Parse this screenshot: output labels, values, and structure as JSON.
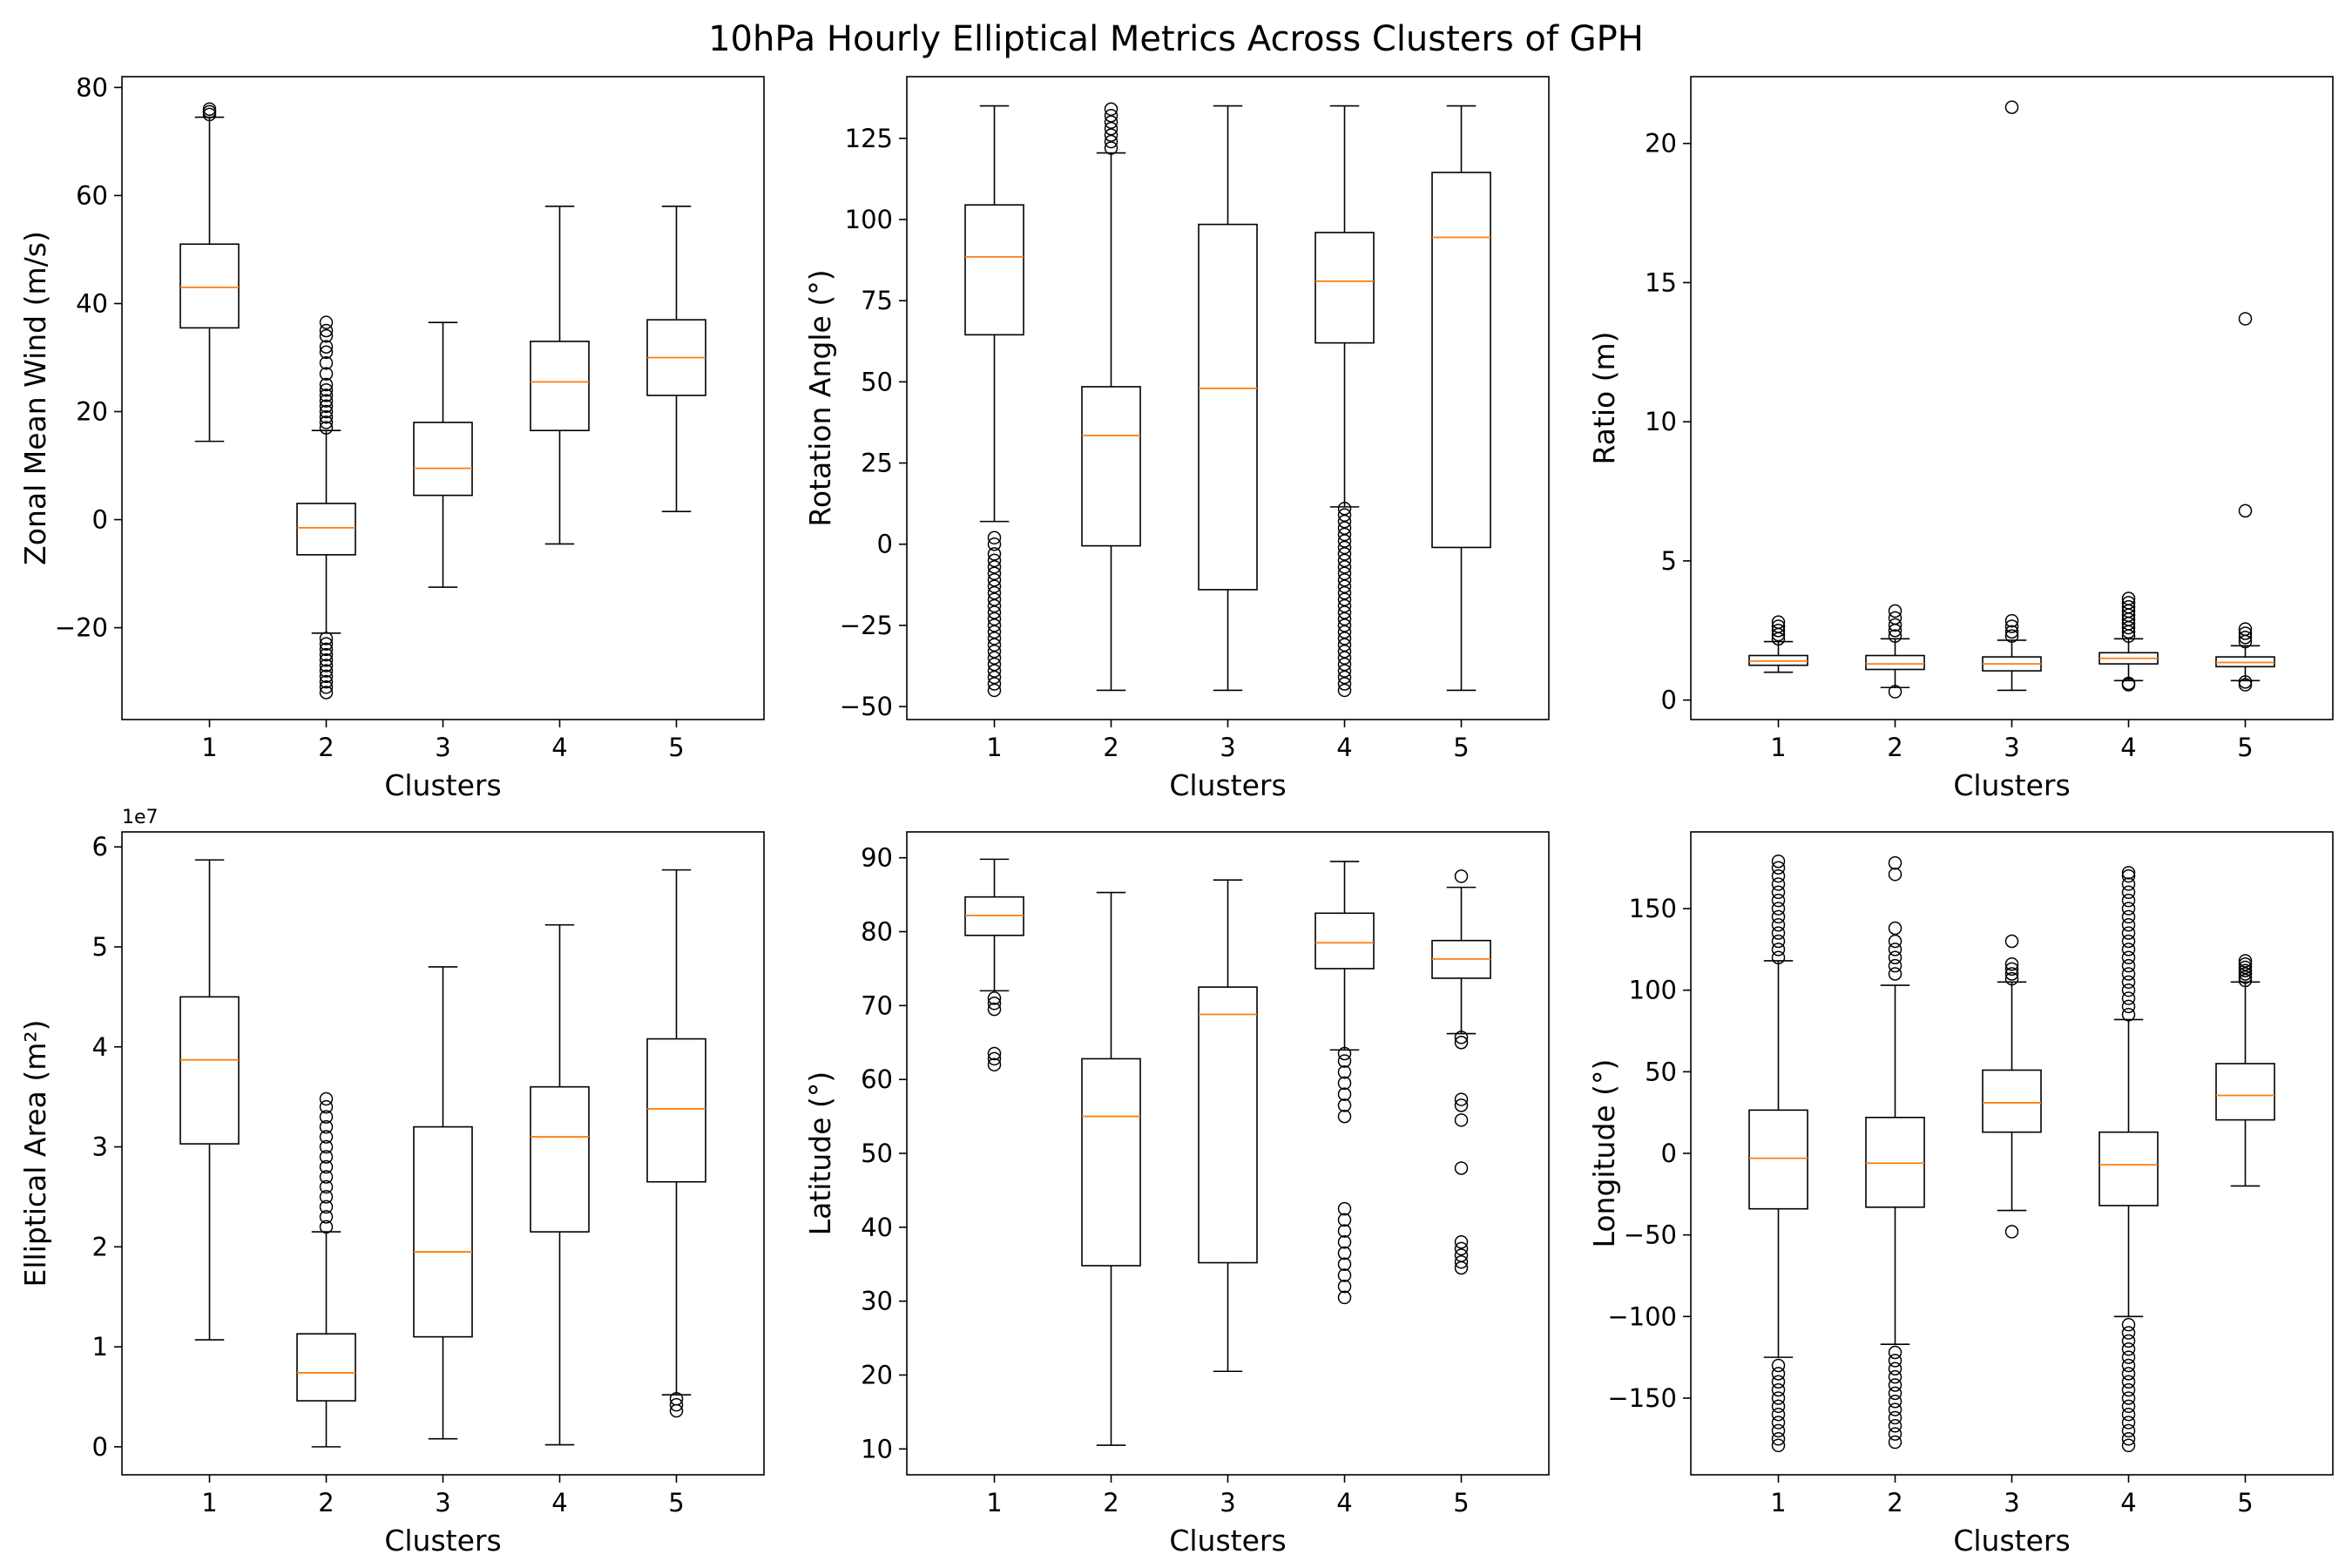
{
  "title": "10hPa Hourly Elliptical Metrics Across Clusters of GPH",
  "chart_data": [
    {
      "type": "box",
      "id": "zonal-wind",
      "ylabel": "Zonal Mean Wind (m/s)",
      "xlabel": "Clusters",
      "categories": [
        "1",
        "2",
        "3",
        "4",
        "5"
      ],
      "ylim": [
        -37,
        82
      ],
      "yticks": [
        -20,
        0,
        20,
        40,
        60,
        80
      ],
      "yticklabels": [
        "−20",
        "0",
        "20",
        "40",
        "60",
        "80"
      ],
      "offset_label": "",
      "boxes": [
        {
          "whislo": 14.5,
          "q1": 35.5,
          "med": 43,
          "q3": 51,
          "whishi": 74.5,
          "fliers": [
            75,
            75.5,
            76
          ]
        },
        {
          "whislo": -21,
          "q1": -6.5,
          "med": -1.5,
          "q3": 3,
          "whishi": 16.5,
          "fliers": [
            -32,
            -31,
            -30,
            -29,
            -28,
            -27,
            -26,
            -25,
            -24,
            -23,
            -22,
            17,
            18,
            19,
            20,
            21,
            22,
            23,
            24,
            25,
            27,
            29,
            31,
            32,
            34,
            35,
            36.5
          ]
        },
        {
          "whislo": -12.5,
          "q1": 4.5,
          "med": 9.5,
          "q3": 18,
          "whishi": 36.5,
          "fliers": []
        },
        {
          "whislo": -4.5,
          "q1": 16.5,
          "med": 25.5,
          "q3": 33,
          "whishi": 58,
          "fliers": []
        },
        {
          "whislo": 1.5,
          "q1": 23,
          "med": 30,
          "q3": 37,
          "whishi": 58,
          "fliers": []
        }
      ]
    },
    {
      "type": "box",
      "id": "rotation-angle",
      "ylabel": "Rotation Angle (°)",
      "xlabel": "Clusters",
      "categories": [
        "1",
        "2",
        "3",
        "4",
        "5"
      ],
      "ylim": [
        -54,
        144
      ],
      "yticks": [
        -50,
        -25,
        0,
        25,
        50,
        75,
        100,
        125
      ],
      "yticklabels": [
        "−50",
        "−25",
        "0",
        "25",
        "50",
        "75",
        "100",
        "125"
      ],
      "offset_label": "",
      "boxes": [
        {
          "whislo": 7,
          "q1": 64.5,
          "med": 88.5,
          "q3": 104.5,
          "whishi": 135,
          "fliers": [
            -45,
            -43,
            -41,
            -39,
            -37,
            -35,
            -33,
            -31,
            -29,
            -27,
            -25,
            -23,
            -21,
            -19,
            -17,
            -15,
            -13,
            -11,
            -9,
            -7,
            -5,
            -3,
            0,
            2
          ]
        },
        {
          "whislo": -45,
          "q1": -0.5,
          "med": 33.5,
          "q3": 48.5,
          "whishi": 120.5,
          "fliers": [
            122,
            124,
            126,
            128,
            130,
            132,
            134
          ]
        },
        {
          "whislo": -45,
          "q1": -14,
          "med": 48,
          "q3": 98.5,
          "whishi": 135,
          "fliers": []
        },
        {
          "whislo": 11.5,
          "q1": 62,
          "med": 81,
          "q3": 96,
          "whishi": 135,
          "fliers": [
            -45,
            -43,
            -41,
            -39,
            -37,
            -35,
            -33,
            -31,
            -29,
            -27,
            -25,
            -23,
            -21,
            -19,
            -17,
            -15,
            -13,
            -11,
            -9,
            -7,
            -5,
            -3,
            -1,
            1,
            3,
            5,
            7,
            9,
            11
          ]
        },
        {
          "whislo": -45,
          "q1": -1,
          "med": 94.5,
          "q3": 114.5,
          "whishi": 135,
          "fliers": []
        }
      ]
    },
    {
      "type": "box",
      "id": "ratio",
      "ylabel": "Ratio (m)",
      "xlabel": "Clusters",
      "categories": [
        "1",
        "2",
        "3",
        "4",
        "5"
      ],
      "ylim": [
        -0.7,
        22.4
      ],
      "yticks": [
        0,
        5,
        10,
        15,
        20
      ],
      "yticklabels": [
        "0",
        "5",
        "10",
        "15",
        "20"
      ],
      "offset_label": "",
      "boxes": [
        {
          "whislo": 1.0,
          "q1": 1.25,
          "med": 1.4,
          "q3": 1.6,
          "whishi": 2.1,
          "fliers": [
            2.2,
            2.35,
            2.5,
            2.65,
            2.8
          ]
        },
        {
          "whislo": 0.45,
          "q1": 1.1,
          "med": 1.3,
          "q3": 1.6,
          "whishi": 2.2,
          "fliers": [
            0.3,
            2.3,
            2.5,
            2.7,
            2.95,
            3.2
          ]
        },
        {
          "whislo": 0.35,
          "q1": 1.05,
          "med": 1.3,
          "q3": 1.55,
          "whishi": 2.15,
          "fliers": [
            2.3,
            2.45,
            2.65,
            2.85,
            21.3
          ]
        },
        {
          "whislo": 0.7,
          "q1": 1.3,
          "med": 1.5,
          "q3": 1.7,
          "whishi": 2.2,
          "fliers": [
            0.55,
            0.6,
            2.3,
            2.45,
            2.6,
            2.75,
            2.9,
            3.05,
            3.2,
            3.35,
            3.5,
            3.65
          ]
        },
        {
          "whislo": 0.7,
          "q1": 1.2,
          "med": 1.35,
          "q3": 1.55,
          "whishi": 1.95,
          "fliers": [
            0.55,
            0.65,
            2.1,
            2.25,
            2.4,
            2.55,
            6.8,
            13.7
          ]
        }
      ]
    },
    {
      "type": "box",
      "id": "elliptical-area",
      "ylabel": "Elliptical Area (m²)",
      "xlabel": "Clusters",
      "categories": [
        "1",
        "2",
        "3",
        "4",
        "5"
      ],
      "ylim": [
        -0.28,
        6.15
      ],
      "yticks": [
        0,
        1,
        2,
        3,
        4,
        5,
        6
      ],
      "yticklabels": [
        "0",
        "1",
        "2",
        "3",
        "4",
        "5",
        "6"
      ],
      "offset_label": "1e7",
      "boxes": [
        {
          "whislo": 1.07,
          "q1": 3.03,
          "med": 3.87,
          "q3": 4.5,
          "whishi": 5.87,
          "fliers": []
        },
        {
          "whislo": 0.0,
          "q1": 0.46,
          "med": 0.74,
          "q3": 1.13,
          "whishi": 2.15,
          "fliers": [
            2.2,
            2.3,
            2.4,
            2.5,
            2.6,
            2.7,
            2.8,
            2.9,
            3.0,
            3.1,
            3.2,
            3.3,
            3.4,
            3.48
          ]
        },
        {
          "whislo": 0.08,
          "q1": 1.1,
          "med": 1.95,
          "q3": 3.2,
          "whishi": 4.8,
          "fliers": []
        },
        {
          "whislo": 0.02,
          "q1": 2.15,
          "med": 3.1,
          "q3": 3.6,
          "whishi": 5.22,
          "fliers": []
        },
        {
          "whislo": 0.52,
          "q1": 2.65,
          "med": 3.38,
          "q3": 4.08,
          "whishi": 5.77,
          "fliers": [
            0.36,
            0.42,
            0.48
          ]
        }
      ]
    },
    {
      "type": "box",
      "id": "latitude",
      "ylabel": "Latitude (°)",
      "xlabel": "Clusters",
      "categories": [
        "1",
        "2",
        "3",
        "4",
        "5"
      ],
      "ylim": [
        6.5,
        93.5
      ],
      "yticks": [
        10,
        20,
        30,
        40,
        50,
        60,
        70,
        80,
        90
      ],
      "yticklabels": [
        "10",
        "20",
        "30",
        "40",
        "50",
        "60",
        "70",
        "80",
        "90"
      ],
      "offset_label": "",
      "boxes": [
        {
          "whislo": 72,
          "q1": 79.5,
          "med": 82.2,
          "q3": 84.7,
          "whishi": 89.8,
          "fliers": [
            62,
            62.8,
            63.5,
            69.5,
            70.3,
            71
          ]
        },
        {
          "whislo": 10.5,
          "q1": 34.8,
          "med": 55,
          "q3": 62.8,
          "whishi": 85.3,
          "fliers": []
        },
        {
          "whislo": 20.5,
          "q1": 35.2,
          "med": 68.8,
          "q3": 72.5,
          "whishi": 87,
          "fliers": []
        },
        {
          "whislo": 64,
          "q1": 75,
          "med": 78.5,
          "q3": 82.5,
          "whishi": 89.5,
          "fliers": [
            30.5,
            32,
            33.5,
            35,
            36.5,
            38,
            39.5,
            41,
            42.5,
            55,
            56.5,
            58,
            59.5,
            61,
            62.5,
            63.5
          ]
        },
        {
          "whislo": 66.2,
          "q1": 73.7,
          "med": 76.3,
          "q3": 78.8,
          "whishi": 86,
          "fliers": [
            34.5,
            35.3,
            36.2,
            37.1,
            38,
            48,
            54.5,
            56.5,
            57.3,
            65,
            65.7,
            87.5
          ]
        }
      ]
    },
    {
      "type": "box",
      "id": "longitude",
      "ylabel": "Longitude (°)",
      "xlabel": "Clusters",
      "categories": [
        "1",
        "2",
        "3",
        "4",
        "5"
      ],
      "ylim": [
        -197,
        197
      ],
      "yticks": [
        -150,
        -100,
        -50,
        0,
        50,
        100,
        150
      ],
      "yticklabels": [
        "−150",
        "−100",
        "−50",
        "0",
        "50",
        "100",
        "150"
      ],
      "offset_label": "",
      "boxes": [
        {
          "whislo": -125,
          "q1": -34,
          "med": -3,
          "q3": 26.5,
          "whishi": 118,
          "fliers": [
            -179,
            -175,
            -170,
            -165,
            -160,
            -155,
            -150,
            -145,
            -140,
            -135,
            -130,
            120,
            125,
            130,
            135,
            140,
            145,
            150,
            155,
            160,
            165,
            170,
            175,
            179
          ]
        },
        {
          "whislo": -117,
          "q1": -33,
          "med": -6,
          "q3": 22,
          "whishi": 103,
          "fliers": [
            -177,
            -172,
            -167,
            -162,
            -157,
            -152,
            -147,
            -142,
            -137,
            -132,
            -127,
            -122,
            110,
            115,
            120,
            125,
            130,
            138,
            171,
            178
          ]
        },
        {
          "whislo": -35,
          "q1": 13,
          "med": 31,
          "q3": 51,
          "whishi": 105,
          "fliers": [
            -48,
            107,
            110,
            113,
            116,
            130
          ]
        },
        {
          "whislo": -100,
          "q1": -32,
          "med": -7,
          "q3": 13,
          "whishi": 82,
          "fliers": [
            -179,
            -175,
            -170,
            -165,
            -160,
            -155,
            -150,
            -145,
            -140,
            -135,
            -130,
            -125,
            -120,
            -115,
            -110,
            -105,
            85,
            90,
            95,
            100,
            105,
            110,
            115,
            120,
            125,
            130,
            135,
            140,
            145,
            150,
            155,
            160,
            165,
            170,
            172
          ]
        },
        {
          "whislo": -20,
          "q1": 20.5,
          "med": 35.5,
          "q3": 55,
          "whishi": 105,
          "fliers": [
            106,
            108,
            110,
            112,
            114,
            116,
            118
          ]
        }
      ]
    }
  ],
  "colors": {
    "median": "#ff7f0e",
    "box": "#000000",
    "background": "#ffffff"
  }
}
